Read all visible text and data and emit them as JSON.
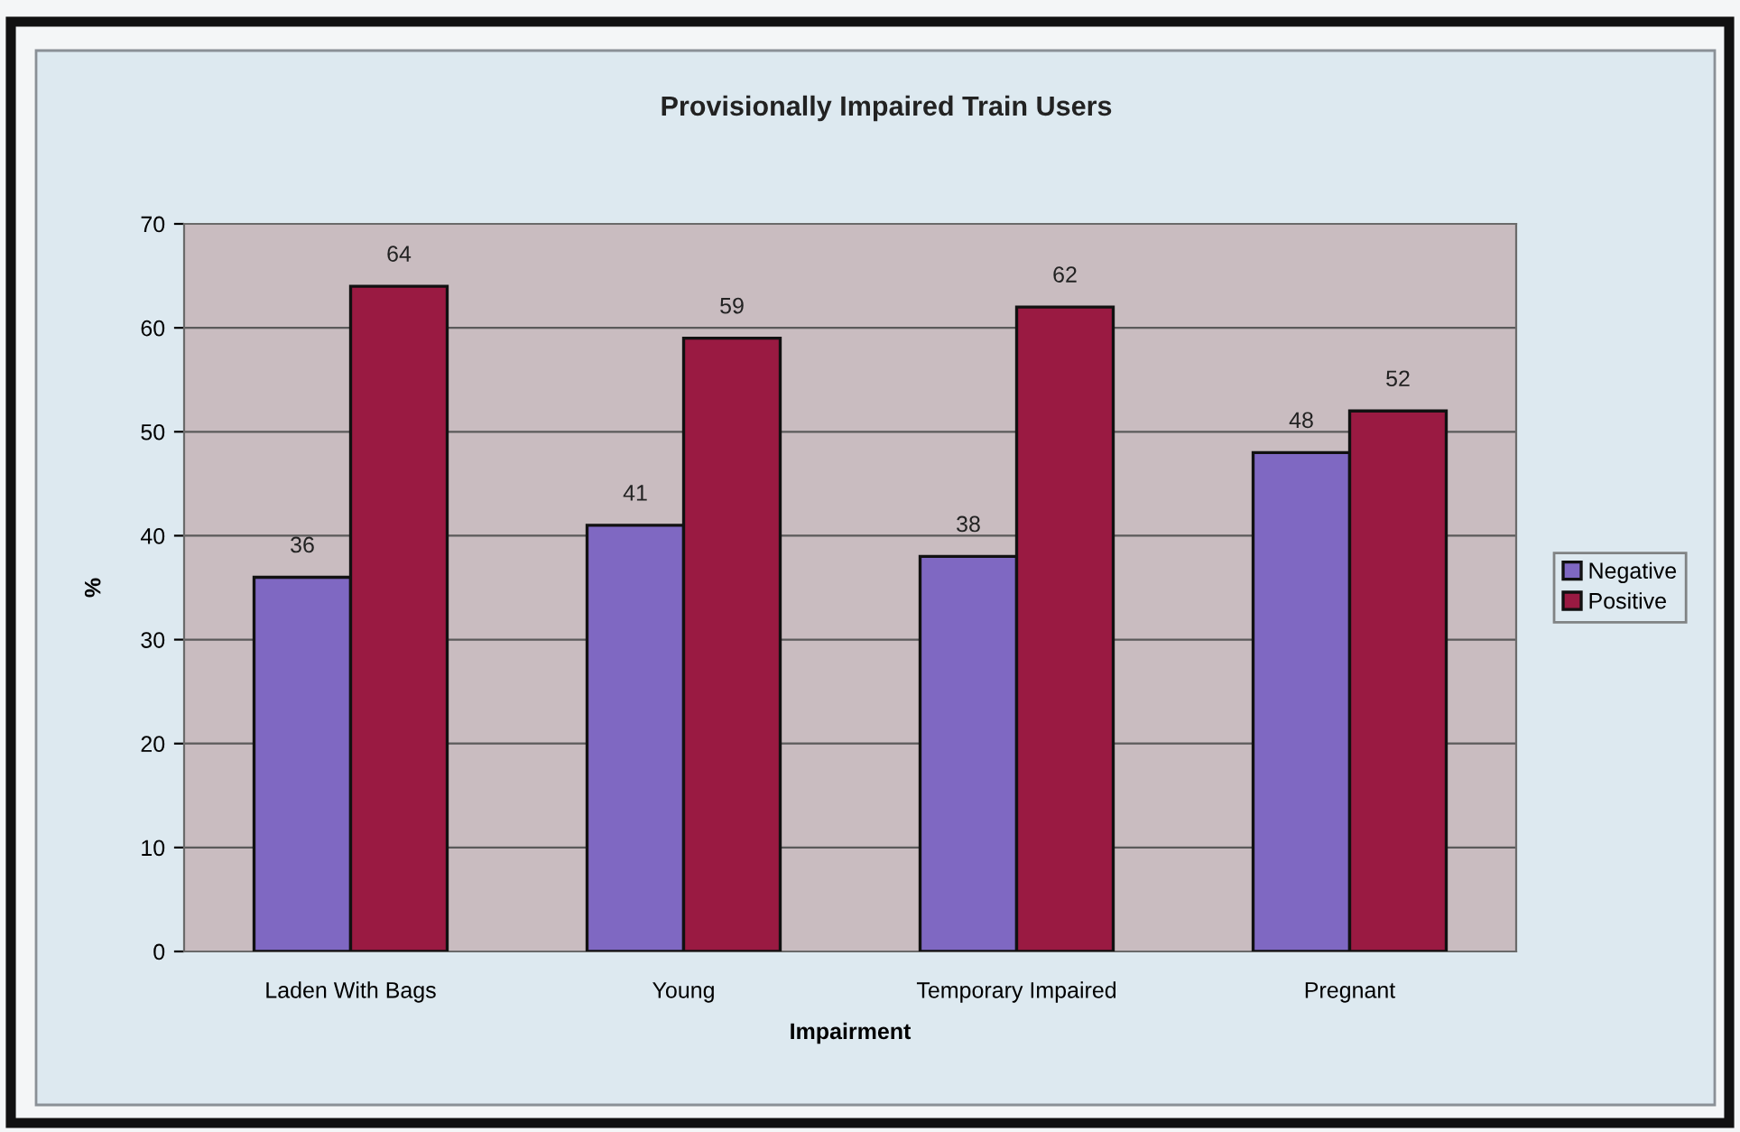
{
  "chart_data": {
    "type": "bar",
    "title": "Provisionally Impaired Train Users",
    "xlabel": "Impairment",
    "ylabel": "%",
    "categories": [
      "Laden With Bags",
      "Young",
      "Temporary Impaired",
      "Pregnant"
    ],
    "series": [
      {
        "name": "Negative",
        "color": "#7f68c2",
        "values": [
          36,
          41,
          38,
          48
        ]
      },
      {
        "name": "Positive",
        "color": "#9a1a42",
        "values": [
          64,
          59,
          62,
          52
        ]
      }
    ],
    "ylim": [
      0,
      70
    ],
    "yticks": [
      0,
      10,
      20,
      30,
      40,
      50,
      60,
      70
    ],
    "grid": "y",
    "legend": "right",
    "data_labels": true
  }
}
